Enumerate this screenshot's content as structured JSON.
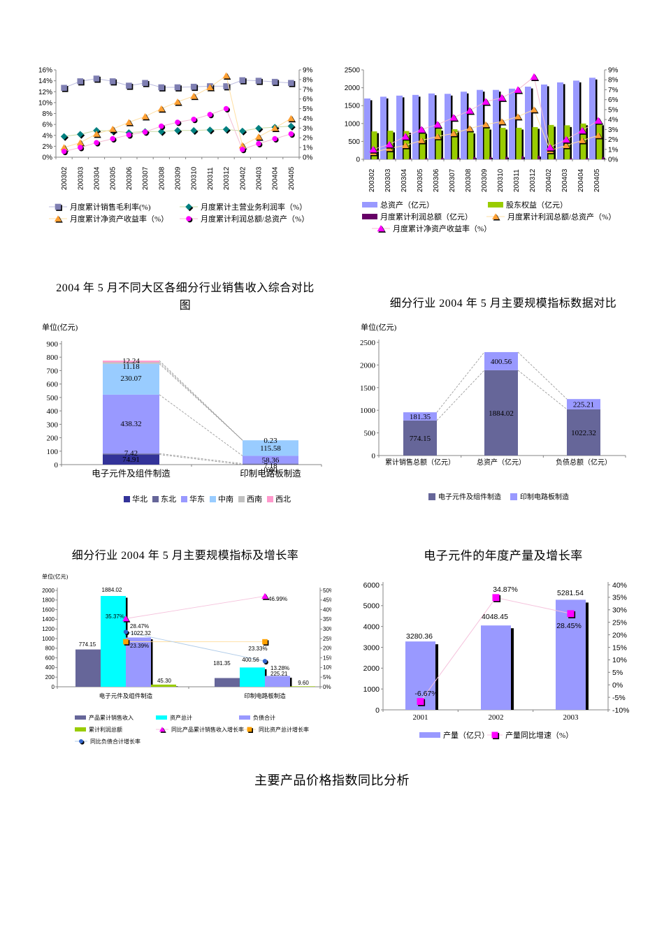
{
  "page": {
    "section_titles": {
      "regional_line1": "2004 年 5 月不同大区各细分行业销售收入综合对比",
      "regional_line2": "图",
      "scale_compare": "细分行业 2004 年 5 月主要规模指标数据对比",
      "scale_growth": "细分行业 2004 年 5 月主要规模指标及增长率",
      "annual_output": "电子元件的年度产量及增长率",
      "price_index": "主要产品价格指数同比分析"
    }
  },
  "chart_data": [
    {
      "id": "monthly-profit-ratios",
      "type": "line",
      "categories": [
        "200302",
        "200303",
        "200304",
        "200305",
        "200306",
        "200307",
        "200308",
        "200309",
        "200310",
        "200311",
        "200312",
        "200402",
        "200403",
        "200404",
        "200405"
      ],
      "left_axis": {
        "min": 0,
        "max": 16,
        "step": 2,
        "format": "percent"
      },
      "right_axis": {
        "min": 0,
        "max": 9,
        "step": 1,
        "format": "percent"
      },
      "grid": false,
      "legend_position": "bottom",
      "series": [
        {
          "name": "月度累计销售毛利率(%)",
          "axis": "left",
          "marker": "square",
          "color": "#7F7FB2",
          "line_color": "#BCBCDF",
          "values": [
            12.7,
            13.9,
            14.4,
            13.9,
            13.1,
            13.6,
            12.8,
            12.8,
            12.9,
            13.0,
            13.0,
            14.1,
            14.0,
            13.8,
            13.6
          ]
        },
        {
          "name": "月度累计主营业务利润率（%）",
          "axis": "left",
          "marker": "diamond",
          "color": "#008080",
          "line_color": "#C9DBA3",
          "values": [
            3.8,
            4.2,
            4.9,
            4.8,
            4.5,
            4.7,
            4.7,
            4.9,
            4.9,
            5.0,
            5.1,
            4.8,
            5.3,
            5.5,
            5.7
          ]
        },
        {
          "name": "月度累计净资产收益率（%）",
          "axis": "right",
          "marker": "triangle",
          "color": "#FFA033",
          "line_color": "#FFDFA3",
          "values": [
            1.0,
            1.5,
            2.4,
            2.9,
            3.6,
            4.2,
            5.0,
            5.7,
            6.3,
            7.2,
            8.4,
            1.2,
            2.1,
            3.0,
            4.0
          ]
        },
        {
          "name": "月度累计利润总额/总资产（%）",
          "axis": "right",
          "marker": "circle",
          "color": "#FF00FF",
          "line_color": "#F3BBD2",
          "values": [
            0.6,
            1.0,
            1.5,
            1.9,
            2.3,
            2.6,
            3.2,
            3.6,
            3.9,
            4.4,
            5.0,
            0.8,
            1.4,
            1.9,
            2.4
          ]
        }
      ]
    },
    {
      "id": "assets-equity-profit",
      "type": "bar-line",
      "categories": [
        "200302",
        "200303",
        "200304",
        "200305",
        "200306",
        "200307",
        "200308",
        "200309",
        "200310",
        "200311",
        "200312",
        "200402",
        "200403",
        "200404",
        "200405"
      ],
      "left_axis": {
        "min": 0,
        "max": 2500,
        "step": 500
      },
      "right_axis": {
        "min": 0,
        "max": 9,
        "step": 1,
        "format": "percent"
      },
      "grid": false,
      "legend_position": "bottom",
      "bar_series": [
        {
          "name": "总资产（亿元）",
          "color": "#9999FF",
          "values": [
            1700,
            1750,
            1780,
            1800,
            1840,
            1830,
            1890,
            1940,
            1940,
            1975,
            2030,
            2090,
            2150,
            2200,
            2280
          ]
        },
        {
          "name": "股东权益（亿元）",
          "color": "#99CC00",
          "values": [
            780,
            800,
            790,
            760,
            850,
            840,
            770,
            880,
            880,
            880,
            900,
            960,
            950,
            1000,
            1000
          ]
        },
        {
          "name": "月度累计利润总额（亿元）",
          "color": "#660066",
          "values": [
            12,
            19,
            25,
            34,
            42,
            48,
            59,
            68,
            74,
            85,
            102,
            19,
            30,
            42,
            55
          ]
        }
      ],
      "marker_series": [
        {
          "name": "月度累计利润总额/总资产（%）",
          "marker": "triangle",
          "color": "#FFA033",
          "line_color": "#FFDFA3",
          "values": [
            0.7,
            1.1,
            1.4,
            1.9,
            2.3,
            2.6,
            3.1,
            3.5,
            3.8,
            4.3,
            5.0,
            0.9,
            1.4,
            1.9,
            2.4
          ]
        },
        {
          "name": "月度累计净资产收益率（%）",
          "marker": "triangle",
          "color": "#FF00FF",
          "line_color": "#F3BBD2",
          "values": [
            1.0,
            1.5,
            2.3,
            3.0,
            3.5,
            4.2,
            4.9,
            5.8,
            6.2,
            7.0,
            8.3,
            1.2,
            2.0,
            2.9,
            3.9
          ]
        }
      ]
    },
    {
      "id": "regional-sales-stacked",
      "type": "stacked-bar",
      "unit_label": "单位(亿元)",
      "categories": [
        "电子元件及组件制造",
        "印制电路板制造"
      ],
      "left_axis": {
        "min": 0,
        "max": 900,
        "step": 100
      },
      "grid": false,
      "legend_position": "bottom",
      "series": [
        {
          "name": "华北",
          "color": "#333399",
          "values": [
            74.91,
            0.0
          ]
        },
        {
          "name": "东北",
          "color": "#666699",
          "values": [
            7.42,
            7.18
          ]
        },
        {
          "name": "华东",
          "color": "#9999FF",
          "values": [
            438.32,
            58.36
          ]
        },
        {
          "name": "中南",
          "color": "#99CCFF",
          "values": [
            230.07,
            115.58
          ]
        },
        {
          "name": "西南",
          "color": "#C0C0C0",
          "values": [
            11.18,
            0.23
          ]
        },
        {
          "name": "西北",
          "color": "#FF99CC",
          "values": [
            12.24,
            0.0
          ]
        }
      ]
    },
    {
      "id": "scale-indicators-stacked",
      "type": "stacked-bar",
      "unit_label": "单位(亿元)",
      "categories": [
        "累计销售总额（亿元）",
        "总资产（亿元）",
        "负债总额（亿元）"
      ],
      "left_axis": {
        "min": 0,
        "max": 2500,
        "step": 500
      },
      "grid": false,
      "legend_position": "bottom",
      "series": [
        {
          "name": "电子元件及组件制造",
          "color": "#666699",
          "values": [
            774.15,
            1884.02,
            1022.32
          ]
        },
        {
          "name": "印制电路板制造",
          "color": "#9999FF",
          "values": [
            181.35,
            400.56,
            225.21
          ]
        }
      ]
    },
    {
      "id": "scale-growth-combo",
      "type": "bar-line",
      "unit_label": "单位(亿元)",
      "categories": [
        "电子元件及组件制造",
        "印制电路板制造"
      ],
      "left_axis": {
        "min": 0,
        "max": 2000,
        "step": 200
      },
      "right_axis": {
        "min": 0,
        "max": 50,
        "step": 5,
        "format": "percent"
      },
      "grid": false,
      "legend_position": "bottom",
      "bar_series": [
        {
          "name": "产品累计销售收入",
          "color": "#666699",
          "values": [
            774.15,
            181.35
          ]
        },
        {
          "name": "资产总计",
          "color": "#00FFFF",
          "values": [
            1884.02,
            400.56
          ]
        },
        {
          "name": "负债合计",
          "color": "#9999FF",
          "values": [
            1022.32,
            225.21
          ]
        },
        {
          "name": "累计利润总额",
          "color": "#99CC00",
          "values": [
            45.3,
            9.6
          ]
        }
      ],
      "marker_series": [
        {
          "name": "同比产品累计销售收入增长率",
          "marker": "triangle",
          "color": "#FF00FF",
          "line_color": "#F5C2DC",
          "values": [
            35.37,
            46.99
          ]
        },
        {
          "name": "同比资产总计增长率",
          "marker": "square",
          "color": "#FFA100",
          "line_color": "#FFDFA3",
          "values": [
            23.39,
            23.33
          ]
        },
        {
          "name": "同比负债合计增长率",
          "marker": "circle",
          "color": "#3366CC",
          "line_color": "#AFCBE8",
          "values": [
            28.47,
            13.28
          ]
        }
      ]
    },
    {
      "id": "annual-output",
      "type": "bar-line",
      "categories": [
        "2001",
        "2002",
        "2003"
      ],
      "left_axis": {
        "min": 0,
        "max": 6000,
        "step": 1000
      },
      "right_axis": {
        "min": -10,
        "max": 40,
        "step": 5,
        "format": "percent"
      },
      "grid": false,
      "legend_position": "bottom",
      "bar_series": [
        {
          "name": "产量（亿只）",
          "color": "#9999FF",
          "values": [
            3280.36,
            4048.45,
            5281.54
          ]
        }
      ],
      "marker_series": [
        {
          "name": "产量同比增速（%）",
          "marker": "square",
          "color": "#FF00FF",
          "line_color": "#F5C2DC",
          "values": [
            -6.67,
            34.87,
            28.45
          ]
        }
      ]
    }
  ]
}
